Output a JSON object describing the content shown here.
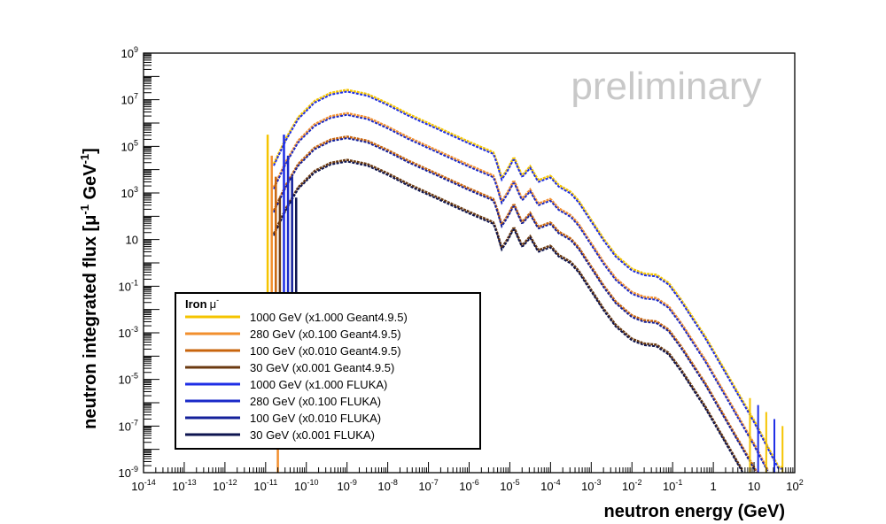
{
  "chart_data": {
    "type": "line",
    "title": "",
    "xlabel": "neutron energy (GeV)",
    "ylabel": "neutron integrated flux [μ⁻¹ GeV⁻¹]",
    "ylabel_parts": {
      "pre": "neutron integrated flux [μ",
      "sup1": "-1",
      "mid": " GeV",
      "sup2": "-1",
      "post": "]"
    },
    "xscale": "log",
    "yscale": "log",
    "xlim_exp": [
      -14,
      2
    ],
    "ylim_exp": [
      -9,
      9
    ],
    "x_tick_labels": [
      {
        "exp": -14,
        "base": "10",
        "sup": "-14"
      },
      {
        "exp": -13,
        "base": "10",
        "sup": "-13"
      },
      {
        "exp": -12,
        "base": "10",
        "sup": "-12"
      },
      {
        "exp": -11,
        "base": "10",
        "sup": "-11"
      },
      {
        "exp": -10,
        "base": "10",
        "sup": "-10"
      },
      {
        "exp": -9,
        "base": "10",
        "sup": "-9"
      },
      {
        "exp": -8,
        "base": "10",
        "sup": "-8"
      },
      {
        "exp": -7,
        "base": "10",
        "sup": "-7"
      },
      {
        "exp": -6,
        "base": "10",
        "sup": "-6"
      },
      {
        "exp": -5,
        "base": "10",
        "sup": "-5"
      },
      {
        "exp": -4,
        "base": "10",
        "sup": "-4"
      },
      {
        "exp": -3,
        "base": "10",
        "sup": "-3"
      },
      {
        "exp": -2,
        "base": "10",
        "sup": "-2"
      },
      {
        "exp": -1,
        "base": "10",
        "sup": "-1"
      },
      {
        "exp": 0,
        "base": "1",
        "sup": ""
      },
      {
        "exp": 1,
        "base": "10",
        "sup": ""
      },
      {
        "exp": 2,
        "base": "10",
        "sup": "2"
      }
    ],
    "y_tick_labels": [
      {
        "exp": -9,
        "base": "10",
        "sup": "-9"
      },
      {
        "exp": -7,
        "base": "10",
        "sup": "-7"
      },
      {
        "exp": -5,
        "base": "10",
        "sup": "-5"
      },
      {
        "exp": -3,
        "base": "10",
        "sup": "-3"
      },
      {
        "exp": -1,
        "base": "10",
        "sup": "-1"
      },
      {
        "exp": 1,
        "base": "10",
        "sup": ""
      },
      {
        "exp": 3,
        "base": "10",
        "sup": "3"
      },
      {
        "exp": 5,
        "base": "10",
        "sup": "5"
      },
      {
        "exp": 7,
        "base": "10",
        "sup": "7"
      },
      {
        "exp": 9,
        "base": "10",
        "sup": "9"
      }
    ],
    "annotation": "preliminary",
    "legend": {
      "title": "Iron",
      "title_particle": "μ",
      "title_sup": "-",
      "position": "bottom-left",
      "entries": [
        {
          "label": "1000 GeV (x1.000 Geant4.9.5)",
          "color": "#f5c400"
        },
        {
          "label": "280 GeV (x0.100 Geant4.9.5)",
          "color": "#f28f2e"
        },
        {
          "label": "100 GeV (x0.010 Geant4.9.5)",
          "color": "#c8650e"
        },
        {
          "label": "30 GeV (x0.001 Geant4.9.5)",
          "color": "#6b3a10"
        },
        {
          "label": "1000 GeV (x1.000 FLUKA)",
          "color": "#1e2ee6"
        },
        {
          "label": "280 GeV (x0.100 FLUKA)",
          "color": "#1a2ac8"
        },
        {
          "label": "100 GeV (x0.010 FLUKA)",
          "color": "#14209a"
        },
        {
          "label": "30 GeV (x0.001 FLUKA)",
          "color": "#0e1550"
        }
      ]
    },
    "curve_shape": {
      "description": "log10(flux) vs log10(E) for the 1000 GeV series; other series shifted by their scale factors",
      "points": [
        [
          -10.8,
          4.2
        ],
        [
          -10.5,
          5.3
        ],
        [
          -10.2,
          6.2
        ],
        [
          -9.8,
          6.9
        ],
        [
          -9.4,
          7.25
        ],
        [
          -9.0,
          7.38
        ],
        [
          -8.5,
          7.2
        ],
        [
          -8.0,
          6.8
        ],
        [
          -7.5,
          6.35
        ],
        [
          -7.0,
          5.95
        ],
        [
          -6.5,
          5.55
        ],
        [
          -6.0,
          5.15
        ],
        [
          -5.6,
          4.85
        ],
        [
          -5.4,
          4.7
        ],
        [
          -5.3,
          4.2
        ],
        [
          -5.2,
          3.6
        ],
        [
          -5.05,
          4.0
        ],
        [
          -4.9,
          4.5
        ],
        [
          -4.7,
          3.7
        ],
        [
          -4.5,
          4.1
        ],
        [
          -4.3,
          3.5
        ],
        [
          -4.0,
          3.7
        ],
        [
          -3.8,
          3.3
        ],
        [
          -3.5,
          3.0
        ],
        [
          -3.3,
          2.6
        ],
        [
          -3.0,
          1.8
        ],
        [
          -2.7,
          1.0
        ],
        [
          -2.4,
          0.3
        ],
        [
          -2.0,
          -0.3
        ],
        [
          -1.7,
          -0.5
        ],
        [
          -1.4,
          -0.55
        ],
        [
          -1.1,
          -0.9
        ],
        [
          -0.8,
          -1.6
        ],
        [
          -0.5,
          -2.4
        ],
        [
          -0.2,
          -3.2
        ],
        [
          0.1,
          -4.1
        ],
        [
          0.4,
          -5.0
        ],
        [
          0.7,
          -5.9
        ],
        [
          1.0,
          -6.8
        ],
        [
          1.3,
          -7.8
        ],
        [
          1.6,
          -8.8
        ]
      ],
      "scale_exp": [
        0,
        -1,
        -2,
        -3
      ]
    }
  }
}
